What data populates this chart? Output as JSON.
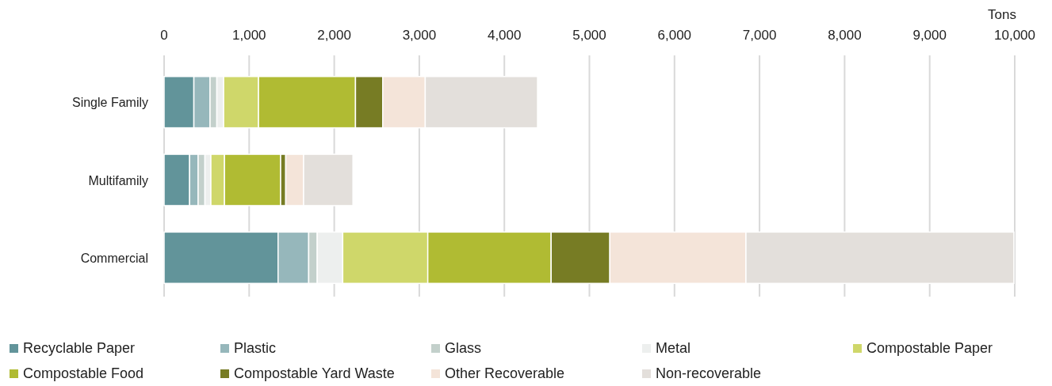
{
  "chart_data": {
    "type": "bar",
    "orientation": "horizontal",
    "stacked": true,
    "xlabel": "Tons",
    "categories": [
      "Single Family",
      "Multifamily",
      "Commercial"
    ],
    "series": [
      {
        "name": "Recyclable Paper",
        "color": "#62949a",
        "values": [
          350,
          300,
          1340
        ]
      },
      {
        "name": "Plastic",
        "color": "#96b7bb",
        "values": [
          190,
          100,
          360
        ]
      },
      {
        "name": "Glass",
        "color": "#c3d0cb",
        "values": [
          80,
          80,
          100
        ]
      },
      {
        "name": "Metal",
        "color": "#edefee",
        "values": [
          80,
          70,
          300
        ]
      },
      {
        "name": "Compostable Paper",
        "color": "#cfd76a",
        "values": [
          410,
          160,
          1000
        ]
      },
      {
        "name": "Compostable Food",
        "color": "#b0bb33",
        "values": [
          1140,
          660,
          1450
        ]
      },
      {
        "name": "Compostable Yard Waste",
        "color": "#777c24",
        "values": [
          320,
          60,
          690
        ]
      },
      {
        "name": "Other Recoverable",
        "color": "#f4e4d9",
        "values": [
          500,
          210,
          1600
        ]
      },
      {
        "name": "Non-recoverable",
        "color": "#e3dfdb",
        "values": [
          1320,
          580,
          3150
        ]
      }
    ],
    "xlim": [
      0,
      10000
    ],
    "xticks": [
      {
        "value": 0,
        "label": "0"
      },
      {
        "value": 1000,
        "label": "1,000"
      },
      {
        "value": 2000,
        "label": "2,000"
      },
      {
        "value": 3000,
        "label": "3,000"
      },
      {
        "value": 4000,
        "label": "4,000"
      },
      {
        "value": 5000,
        "label": "5,000"
      },
      {
        "value": 6000,
        "label": "6,000"
      },
      {
        "value": 7000,
        "label": "7,000"
      },
      {
        "value": 8000,
        "label": "8,000"
      },
      {
        "value": 9000,
        "label": "9,000"
      },
      {
        "value": 10000,
        "label": "10,000"
      }
    ],
    "grid": "x",
    "legend": "bottom"
  }
}
